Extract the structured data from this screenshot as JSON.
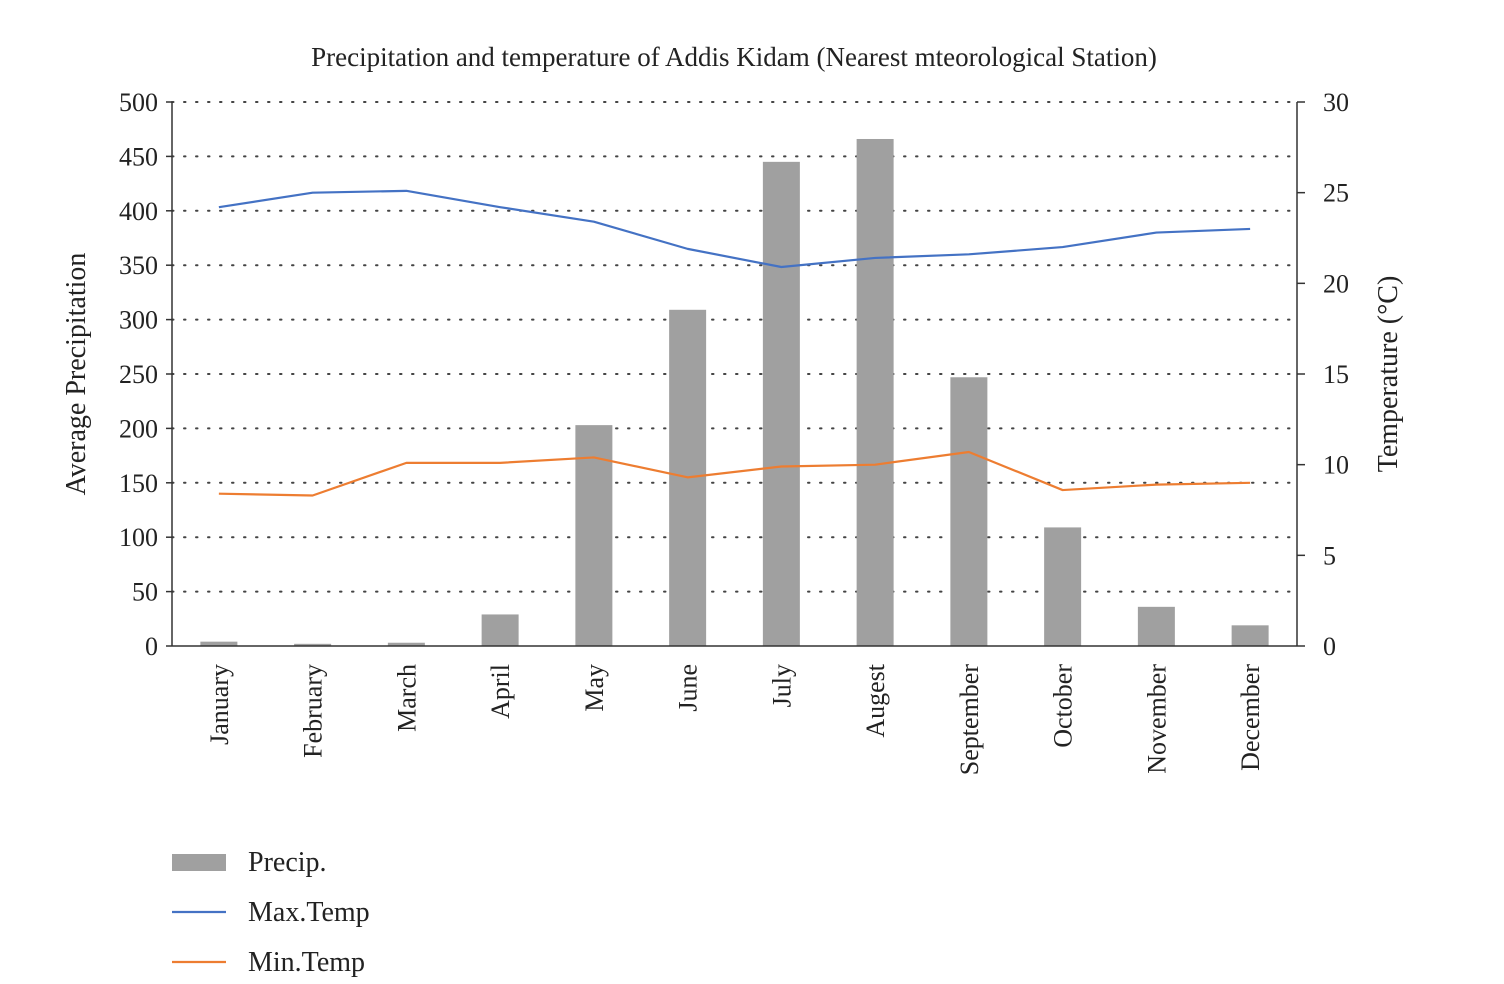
{
  "chart_data": {
    "type": "bar+line",
    "title": "Precipitation and temperature of Addis Kidam (Nearest mteorological Station)",
    "ylabel_left": "Average Precipitation",
    "ylabel_right": "Temperature (°C)",
    "categories": [
      "January",
      "February",
      "March",
      "April",
      "May",
      "June",
      "July",
      "Augest",
      "September",
      "October",
      "November",
      "December"
    ],
    "ylim_left": [
      0,
      500
    ],
    "yticks_left": [
      "0",
      "50",
      "100",
      "150",
      "200",
      "250",
      "300",
      "350",
      "400",
      "450",
      "500"
    ],
    "ylim_right": [
      0,
      30
    ],
    "yticks_right": [
      "0",
      "5",
      "10",
      "15",
      "20",
      "25",
      "30"
    ],
    "grid": "horizontal dotted",
    "legend_position": "bottom-left",
    "series": [
      {
        "name": "Precip.",
        "type": "bar",
        "axis": "left",
        "color": "#a0a0a0",
        "values": [
          4,
          2,
          3,
          29,
          203,
          309,
          445,
          466,
          247,
          109,
          36,
          19
        ]
      },
      {
        "name": "Max.Temp",
        "type": "line",
        "axis": "right",
        "color": "#4472c4",
        "values": [
          24.2,
          25.0,
          25.1,
          24.2,
          23.4,
          21.9,
          20.9,
          21.4,
          21.6,
          22.0,
          22.8,
          23.0
        ]
      },
      {
        "name": "Min.Temp",
        "type": "line",
        "axis": "right",
        "color": "#ed7d31",
        "values": [
          8.4,
          8.3,
          10.1,
          10.1,
          10.4,
          9.3,
          9.9,
          10.0,
          10.7,
          8.6,
          8.9,
          9.0
        ]
      }
    ]
  }
}
